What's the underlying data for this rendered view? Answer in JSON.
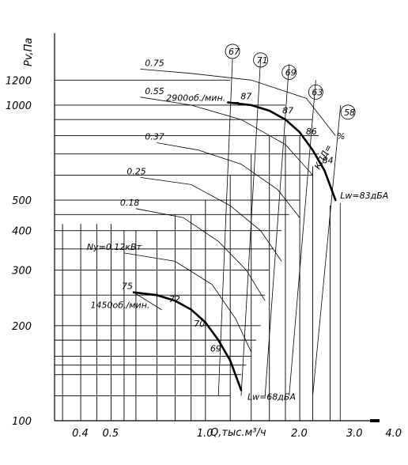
{
  "chart_data": {
    "type": "line",
    "title": "",
    "xlabel": "Q,тыс.м³/ч",
    "ylabel": "Pv,Па",
    "x_scale": "log",
    "y_scale": "log",
    "xlim": [
      0.33,
      4.0
    ],
    "ylim": [
      100,
      1600
    ],
    "grid": true,
    "x_ticks": [
      {
        "value": 0.4,
        "label": "0.4"
      },
      {
        "value": 0.5,
        "label": "0.5"
      },
      {
        "value": 1.0,
        "label": "1.0"
      },
      {
        "value": 2.0,
        "label": "2.0"
      },
      {
        "value": 3.0,
        "label": "3.0"
      },
      {
        "value": 4.0,
        "label": "4.0"
      }
    ],
    "y_ticks": [
      {
        "value": 100,
        "label": "100"
      },
      {
        "value": 200,
        "label": "200"
      },
      {
        "value": 300,
        "label": "300"
      },
      {
        "value": 400,
        "label": "400"
      },
      {
        "value": 500,
        "label": "500"
      },
      {
        "value": 1000,
        "label": "1000"
      },
      {
        "value": 1200,
        "label": "1200"
      }
    ],
    "series": [
      {
        "name": "2900об./мин.",
        "x": [
          1.18,
          1.4,
          1.6,
          1.8,
          2.0,
          2.2,
          2.4,
          2.6
        ],
        "y": [
          1020,
          1000,
          960,
          900,
          820,
          720,
          620,
          500
        ]
      },
      {
        "name": "1450об./мин.",
        "x": [
          0.59,
          0.7,
          0.8,
          0.9,
          1.0,
          1.1,
          1.2,
          1.3
        ],
        "y": [
          255,
          250,
          240,
          225,
          205,
          180,
          155,
          125
        ]
      }
    ],
    "efficiency_labels": {
      "high": [
        {
          "label": "87",
          "x": 1.25,
          "y": 1020
        },
        {
          "label": "87",
          "x": 1.7,
          "y": 920
        },
        {
          "label": "86",
          "x": 2.02,
          "y": 790
        },
        {
          "label": "84",
          "x": 2.28,
          "y": 640
        }
      ],
      "low": [
        {
          "label": "75",
          "x": 0.6,
          "y": 255
        },
        {
          "label": "72",
          "x": 0.85,
          "y": 232
        },
        {
          "label": "70",
          "x": 1.02,
          "y": 194
        },
        {
          "label": "69",
          "x": 1.15,
          "y": 162
        }
      ]
    },
    "kpd_circles": [
      "67",
      "71",
      "69",
      "63",
      "58"
    ],
    "kpd_label": "КПД=",
    "kpd_suffix": "%",
    "power_labels": [
      "0.75",
      "0.55",
      "0.37",
      "0.25",
      "0.18",
      "Ny=0.12кВт"
    ],
    "noise_labels": [
      "Lw=83дБА",
      "Lw=68дБА"
    ]
  }
}
